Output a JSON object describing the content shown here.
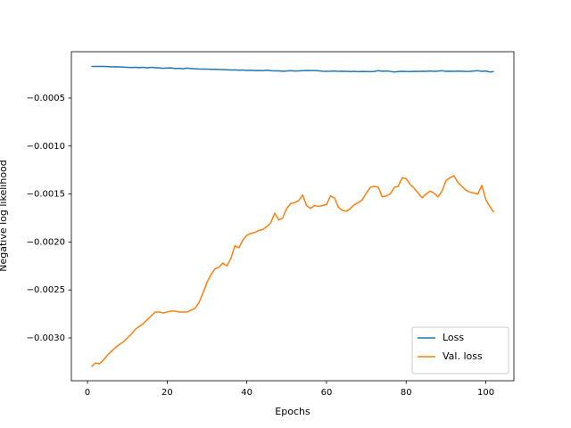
{
  "chart_data": {
    "type": "line",
    "xlabel": "Epochs",
    "ylabel": "Negative log likelihood",
    "x": [
      1,
      2,
      3,
      4,
      5,
      6,
      7,
      8,
      9,
      10,
      11,
      12,
      13,
      14,
      15,
      16,
      17,
      18,
      19,
      20,
      21,
      22,
      23,
      24,
      25,
      26,
      27,
      28,
      29,
      30,
      31,
      32,
      33,
      34,
      35,
      36,
      37,
      38,
      39,
      40,
      41,
      42,
      43,
      44,
      45,
      46,
      47,
      48,
      49,
      50,
      51,
      52,
      53,
      54,
      55,
      56,
      57,
      58,
      59,
      60,
      61,
      62,
      63,
      64,
      65,
      66,
      67,
      68,
      69,
      70,
      71,
      72,
      73,
      74,
      75,
      76,
      77,
      78,
      79,
      80,
      81,
      82,
      83,
      84,
      85,
      86,
      87,
      88,
      89,
      90,
      91,
      92,
      93,
      94,
      95,
      96,
      97,
      98,
      99,
      100,
      101,
      102
    ],
    "series": [
      {
        "name": "Loss",
        "color": "#1f77b4",
        "values": [
          -0.00017,
          -0.00017,
          -0.00017,
          -0.00017,
          -0.000172,
          -0.000175,
          -0.000174,
          -0.000175,
          -0.000177,
          -0.00018,
          -0.000182,
          -0.00018,
          -0.000183,
          -0.00018,
          -0.000185,
          -0.00018,
          -0.000183,
          -0.000185,
          -0.00019,
          -0.000187,
          -0.000185,
          -0.000192,
          -0.00019,
          -0.000195,
          -0.000188,
          -0.000192,
          -0.000195,
          -0.000197,
          -0.000198,
          -0.000198,
          -0.0002,
          -0.0002,
          -0.000202,
          -0.000203,
          -0.000205,
          -0.000207,
          -0.000206,
          -0.00021,
          -0.000208,
          -0.000212,
          -0.00021,
          -0.000213,
          -0.000212,
          -0.000215,
          -0.00021,
          -0.000215,
          -0.000217,
          -0.000216,
          -0.00022,
          -0.000218,
          -0.000215,
          -0.000218,
          -0.000217,
          -0.000215,
          -0.000212,
          -0.000213,
          -0.000213,
          -0.000216,
          -0.00022,
          -0.000221,
          -0.00022,
          -0.000218,
          -0.000222,
          -0.00022,
          -0.000221,
          -0.000224,
          -0.000222,
          -0.000225,
          -0.000223,
          -0.000224,
          -0.000225,
          -0.000223,
          -0.000214,
          -0.00022,
          -0.000218,
          -0.000222,
          -0.000228,
          -0.000224,
          -0.000221,
          -0.000223,
          -0.000224,
          -0.000222,
          -0.000223,
          -0.00022,
          -0.000221,
          -0.000218,
          -0.000222,
          -0.000219,
          -0.000215,
          -0.000221,
          -0.00022,
          -0.000222,
          -0.000219,
          -0.00022,
          -0.000223,
          -0.000221,
          -0.000218,
          -0.000215,
          -0.000221,
          -0.000218,
          -0.000228,
          -0.000224
        ]
      },
      {
        "name": "Val. loss",
        "color": "#ff7f0e",
        "values": [
          -0.0033,
          -0.00326,
          -0.00327,
          -0.00323,
          -0.00318,
          -0.00314,
          -0.0031,
          -0.00307,
          -0.00304,
          -0.003,
          -0.00296,
          -0.00291,
          -0.00288,
          -0.00285,
          -0.00281,
          -0.00277,
          -0.00273,
          -0.00273,
          -0.00274,
          -0.00273,
          -0.00272,
          -0.00272,
          -0.00273,
          -0.00273,
          -0.00273,
          -0.00271,
          -0.00269,
          -0.00263,
          -0.00253,
          -0.00242,
          -0.00234,
          -0.00228,
          -0.00226,
          -0.00222,
          -0.00225,
          -0.00217,
          -0.00204,
          -0.00206,
          -0.00198,
          -0.00193,
          -0.00191,
          -0.0019,
          -0.00188,
          -0.00187,
          -0.00184,
          -0.0018,
          -0.0017,
          -0.00177,
          -0.00175,
          -0.00165,
          -0.0016,
          -0.00159,
          -0.00157,
          -0.00151,
          -0.00162,
          -0.00165,
          -0.00162,
          -0.00163,
          -0.00162,
          -0.00161,
          -0.00152,
          -0.00154,
          -0.00164,
          -0.00167,
          -0.00168,
          -0.00165,
          -0.00161,
          -0.00159,
          -0.00156,
          -0.00149,
          -0.00143,
          -0.00142,
          -0.00143,
          -0.00153,
          -0.00152,
          -0.0015,
          -0.00143,
          -0.00142,
          -0.00133,
          -0.00134,
          -0.0014,
          -0.00144,
          -0.00149,
          -0.00154,
          -0.0015,
          -0.00147,
          -0.00149,
          -0.00153,
          -0.00147,
          -0.00136,
          -0.00133,
          -0.00131,
          -0.00138,
          -0.00142,
          -0.00146,
          -0.00148,
          -0.00149,
          -0.0015,
          -0.00141,
          -0.00156,
          -0.00163,
          -0.00169
        ]
      }
    ],
    "xlim": [
      -4.05,
      107.05
    ],
    "xticks": [
      0,
      20,
      40,
      60,
      80,
      100
    ],
    "ylim": [
      -0.003446,
      -1.7e-05
    ],
    "yticks": [
      {
        "value": -0.003,
        "label": "−0.0030"
      },
      {
        "value": -0.0025,
        "label": "−0.0025"
      },
      {
        "value": -0.002,
        "label": "−0.0020"
      },
      {
        "value": -0.0015,
        "label": "−0.0015"
      },
      {
        "value": -0.001,
        "label": "−0.0010"
      },
      {
        "value": -0.0005,
        "label": "−0.0005"
      }
    ],
    "legend": "lower right"
  }
}
